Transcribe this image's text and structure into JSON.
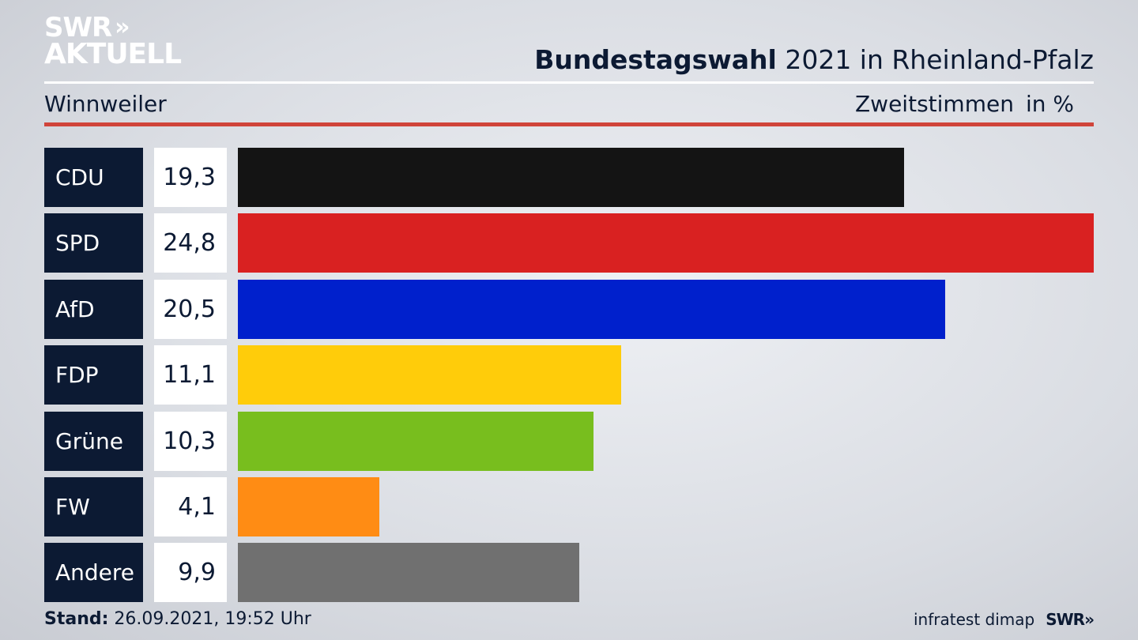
{
  "header": {
    "logo_line1": "SWR",
    "logo_chevrons": "»",
    "logo_line2": "AKTUELL",
    "title_bold": "Bundestagswahl",
    "title_rest": " 2021 in Rheinland-Pfalz",
    "region": "Winnweiler",
    "metric": "Zweitstimmen",
    "unit": "in %"
  },
  "footer": {
    "stand_label": "Stand:",
    "stand_value": " 26.09.2021, 19:52 Uhr",
    "source": "infratest dimap",
    "broadcaster": "SWR",
    "broadcaster_chevrons": "»"
  },
  "colors": {
    "panel": "#0c1a33",
    "accent_rule": "#d0443a"
  },
  "chart_data": {
    "type": "bar",
    "orientation": "horizontal",
    "categories": [
      "CDU",
      "SPD",
      "AfD",
      "FDP",
      "Grüne",
      "FW",
      "Andere"
    ],
    "values": [
      19.3,
      24.8,
      20.5,
      11.1,
      10.3,
      4.1,
      9.9
    ],
    "value_labels": [
      "19,3",
      "24,8",
      "20,5",
      "11,1",
      "10,3",
      "4,1",
      "9,9"
    ],
    "colors": [
      "#141414",
      "#d92121",
      "#0020cc",
      "#ffcc0a",
      "#78be1e",
      "#ff8c14",
      "#707070"
    ],
    "xlim": [
      0,
      24.8
    ]
  }
}
